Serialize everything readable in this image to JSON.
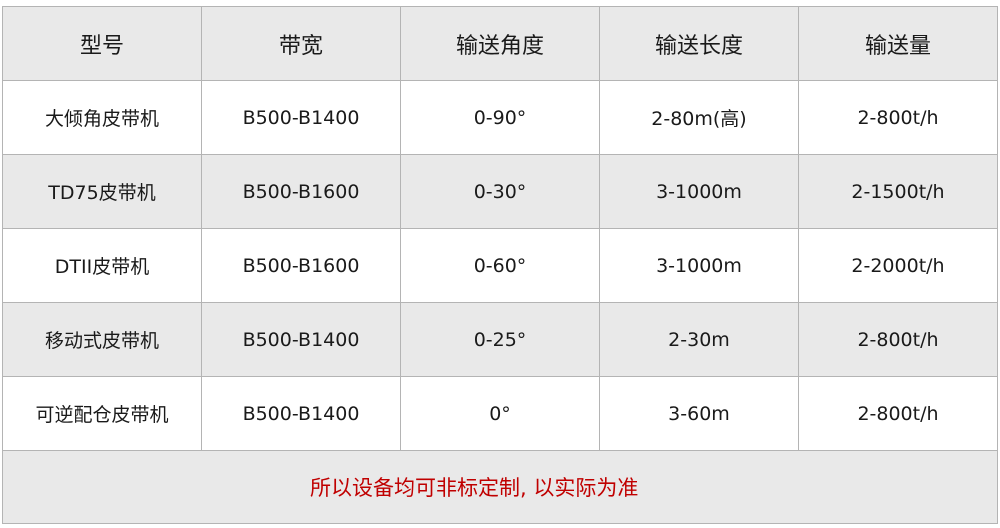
{
  "table": {
    "headers": [
      "型号",
      "带宽",
      "输送角度",
      "输送长度",
      "输送量"
    ],
    "rows": [
      [
        "大倾角皮带机",
        "B500-B1400",
        "0-90°",
        "2-80m(高)",
        "2-800t/h"
      ],
      [
        "TD75皮带机",
        "B500-B1600",
        "0-30°",
        "3-1000m",
        "2-1500t/h"
      ],
      [
        "DTII皮带机",
        "B500-B1600",
        "0-60°",
        "3-1000m",
        "2-2000t/h"
      ],
      [
        "移动式皮带机",
        "B500-B1400",
        "0-25°",
        "2-30m",
        "2-800t/h"
      ],
      [
        "可逆配仓皮带机",
        "B500-B1400",
        "0°",
        "3-60m",
        "2-800t/h"
      ]
    ],
    "note": "所以设备均可非标定制, 以实际为准"
  },
  "colors": {
    "header_bg": "#e9e9e9",
    "border": "#b4b4b4",
    "note_text": "#c00000"
  }
}
